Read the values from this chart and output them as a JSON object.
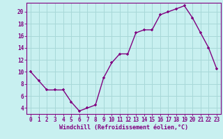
{
  "x": [
    0,
    1,
    2,
    3,
    4,
    5,
    6,
    7,
    8,
    9,
    10,
    11,
    12,
    13,
    14,
    15,
    16,
    17,
    18,
    19,
    20,
    21,
    22,
    23
  ],
  "y": [
    10,
    8.5,
    7,
    7,
    7,
    5,
    3.5,
    4,
    4.5,
    9,
    11.5,
    13,
    13,
    16.5,
    17,
    17,
    19.5,
    20,
    20.5,
    21,
    19,
    16.5,
    14,
    10.5
  ],
  "line_color": "#800080",
  "marker": "+",
  "bg_color": "#c8f0f0",
  "grid_color": "#a8d8d8",
  "xlabel": "Windchill (Refroidissement éolien,°C)",
  "xlim": [
    -0.5,
    23.5
  ],
  "ylim": [
    3.0,
    21.5
  ],
  "yticks": [
    4,
    6,
    8,
    10,
    12,
    14,
    16,
    18,
    20
  ],
  "xticks": [
    0,
    1,
    2,
    3,
    4,
    5,
    6,
    7,
    8,
    9,
    10,
    11,
    12,
    13,
    14,
    15,
    16,
    17,
    18,
    19,
    20,
    21,
    22,
    23
  ],
  "tick_color": "#800080",
  "label_color": "#800080",
  "axis_color": "#800080",
  "font_family": "monospace",
  "tick_fontsize": 5.5,
  "xlabel_fontsize": 6.0,
  "linewidth": 1.0,
  "markersize": 3.5
}
